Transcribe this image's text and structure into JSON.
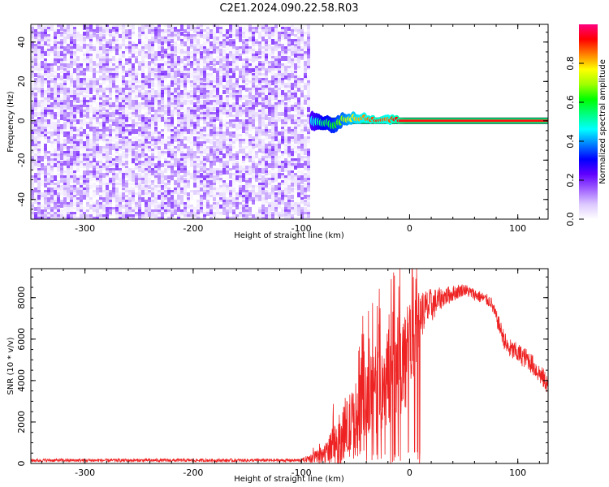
{
  "title": "C2E1.2024.090.22.58.R03",
  "chart_data": [
    {
      "type": "heatmap",
      "xlabel": "Height of straight line (km)",
      "ylabel": "Frequency (Hz)",
      "xlim": [
        -350,
        128
      ],
      "ylim": [
        -50,
        49
      ],
      "xticks": [
        -300,
        -200,
        -100,
        0,
        100
      ],
      "yticks": [
        -40,
        -20,
        0,
        20,
        40
      ],
      "noise_region": {
        "x_range": [
          -350,
          -92
        ],
        "y_range": [
          -50,
          49
        ],
        "amplitude": [
          0.0,
          0.2
        ]
      },
      "signal_band": {
        "x_range": [
          -92,
          128
        ],
        "center_frequency": 0,
        "peak_amplitude": 1.0,
        "points": [
          {
            "x": -90,
            "y": 0,
            "width": 10,
            "amp": 0.45
          },
          {
            "x": -80,
            "y": -1,
            "width": 7,
            "amp": 0.55
          },
          {
            "x": -70,
            "y": -2,
            "width": 8,
            "amp": 0.6
          },
          {
            "x": -60,
            "y": 1,
            "width": 6,
            "amp": 0.7
          },
          {
            "x": -50,
            "y": 2,
            "width": 5,
            "amp": 0.8
          },
          {
            "x": -40,
            "y": 1,
            "width": 4,
            "amp": 0.85
          },
          {
            "x": -30,
            "y": 0,
            "width": 3,
            "amp": 0.9
          },
          {
            "x": -20,
            "y": 1,
            "width": 5,
            "amp": 0.85
          },
          {
            "x": -10,
            "y": 0,
            "width": 3,
            "amp": 0.95
          },
          {
            "x": 0,
            "y": 0,
            "width": 2,
            "amp": 1.0
          },
          {
            "x": 50,
            "y": 0,
            "width": 2,
            "amp": 1.0
          },
          {
            "x": 128,
            "y": 0,
            "width": 2,
            "amp": 1.0
          }
        ]
      },
      "colorbar": {
        "label": "Normalized spectral amplitude",
        "range": [
          0.0,
          1.0
        ],
        "ticks": [
          0.0,
          0.2,
          0.4,
          0.6,
          0.8
        ],
        "colors": [
          "#ffffff",
          "#dcc8ff",
          "#a060ff",
          "#6000ff",
          "#0000ff",
          "#0080ff",
          "#00ffff",
          "#00ff80",
          "#00ff00",
          "#a0ff00",
          "#ffff00",
          "#ff8000",
          "#ff0000",
          "#ff0080"
        ]
      }
    },
    {
      "type": "line",
      "xlabel": "Height of straight line (km)",
      "ylabel": "SNR (10 * v/v)",
      "xlim": [
        -350,
        128
      ],
      "ylim": [
        0,
        9400
      ],
      "xticks": [
        -300,
        -200,
        -100,
        0,
        100
      ],
      "yticks": [
        0,
        2000,
        4000,
        6000,
        8000
      ],
      "series": [
        {
          "color": "#ee2222",
          "envelope": [
            {
              "x": -350,
              "y": 150,
              "noise": 80
            },
            {
              "x": -100,
              "y": 150,
              "noise": 80
            },
            {
              "x": -80,
              "y": 400,
              "noise": 400
            },
            {
              "x": -60,
              "y": 1400,
              "noise": 1500
            },
            {
              "x": -40,
              "y": 2800,
              "noise": 2200
            },
            {
              "x": -20,
              "y": 4200,
              "noise": 2400
            },
            {
              "x": 0,
              "y": 5200,
              "noise": 2600
            },
            {
              "x": 10,
              "y": 7200,
              "noise": 1200
            },
            {
              "x": 30,
              "y": 8000,
              "noise": 500
            },
            {
              "x": 50,
              "y": 8400,
              "noise": 300
            },
            {
              "x": 75,
              "y": 7800,
              "noise": 300
            },
            {
              "x": 90,
              "y": 5600,
              "noise": 500
            },
            {
              "x": 110,
              "y": 5000,
              "noise": 500
            },
            {
              "x": 128,
              "y": 3800,
              "noise": 500
            }
          ]
        }
      ]
    }
  ]
}
